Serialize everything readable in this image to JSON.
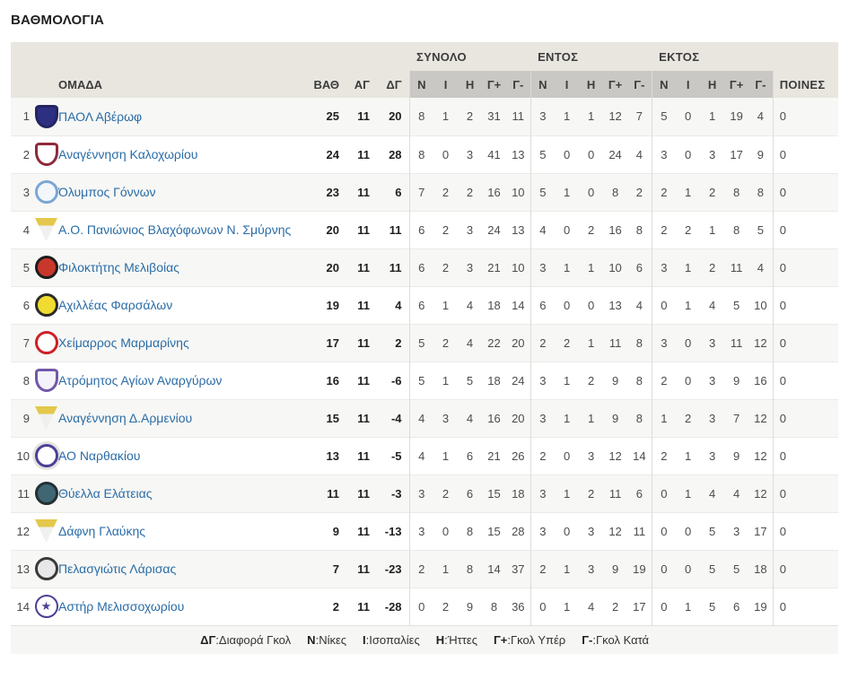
{
  "page": {
    "title": "ΒΑΘΜΟΛΟΓΙΑ"
  },
  "icons": {
    "star_glyph": "★"
  },
  "colors": {
    "header_band": "#e8e6df",
    "stats_band": "#c9c8c4",
    "row_stripe": "#f7f7f5",
    "link_blue": "#2a6ca6",
    "footer_bg": "#f6f6f4"
  },
  "table": {
    "group_headers": [
      {
        "label": "ΣΥΝΟΛΟ"
      },
      {
        "label": "ΕΝΤΟΣ"
      },
      {
        "label": "ΕΚΤΟΣ"
      }
    ],
    "columns": {
      "team": "ΟΜΑΔΑ",
      "points": "ΒΑΘ",
      "games": "ΑΓ",
      "diff": "ΔΓ",
      "stat_cols": [
        "Ν",
        "Ι",
        "Η",
        "Γ+",
        "Γ-"
      ],
      "penalties": "ΠΟΙΝΕΣ"
    },
    "rows": [
      {
        "pos": 1,
        "team": "ΠΑΟΛ Αβέρωφ",
        "points": 25,
        "games": 11,
        "diff": 20,
        "total": [
          8,
          1,
          2,
          31,
          11
        ],
        "home": [
          3,
          1,
          1,
          12,
          7
        ],
        "away": [
          5,
          0,
          1,
          19,
          4
        ],
        "penalties": 0,
        "badge": {
          "shape": "shield",
          "primary": "#2d2f83",
          "secondary": "#23255f"
        }
      },
      {
        "pos": 2,
        "team": "Αναγέννηση Καλοχωρίου",
        "points": 24,
        "games": 11,
        "diff": 28,
        "total": [
          8,
          0,
          3,
          41,
          13
        ],
        "home": [
          5,
          0,
          0,
          24,
          4
        ],
        "away": [
          3,
          0,
          3,
          17,
          9
        ],
        "penalties": 0,
        "badge": {
          "shape": "shield",
          "primary": "#ffffff",
          "secondary": "#8e2a3c"
        }
      },
      {
        "pos": 3,
        "team": "Όλυμπος Γόννων",
        "points": 23,
        "games": 11,
        "diff": 6,
        "total": [
          7,
          2,
          2,
          16,
          10
        ],
        "home": [
          5,
          1,
          0,
          8,
          2
        ],
        "away": [
          2,
          1,
          2,
          8,
          8
        ],
        "penalties": 0,
        "badge": {
          "shape": "circle",
          "primary": "#f3f7fb",
          "secondary": "#7aa7d4"
        }
      },
      {
        "pos": 4,
        "team": "Α.Ο. Πανιώνιος Βλαχόφωνων Ν. Σμύρνης",
        "points": 20,
        "games": 11,
        "diff": 11,
        "total": [
          6,
          2,
          3,
          24,
          13
        ],
        "home": [
          4,
          0,
          2,
          16,
          8
        ],
        "away": [
          2,
          2,
          1,
          8,
          5
        ],
        "penalties": 0,
        "badge": {
          "shape": "pennant",
          "primary": "#f0f0ee",
          "secondary": "#e3c84b"
        }
      },
      {
        "pos": 5,
        "team": "Φιλοκτήτης Μελιβοίας",
        "points": 20,
        "games": 11,
        "diff": 11,
        "total": [
          6,
          2,
          3,
          21,
          10
        ],
        "home": [
          3,
          1,
          1,
          10,
          6
        ],
        "away": [
          3,
          1,
          2,
          11,
          4
        ],
        "penalties": 0,
        "badge": {
          "shape": "circle",
          "primary": "#c8372c",
          "secondary": "#1c1c1c"
        }
      },
      {
        "pos": 6,
        "team": "Αχιλλέας Φαρσάλων",
        "points": 19,
        "games": 11,
        "diff": 4,
        "total": [
          6,
          1,
          4,
          18,
          14
        ],
        "home": [
          6,
          0,
          0,
          13,
          4
        ],
        "away": [
          0,
          1,
          4,
          5,
          10
        ],
        "penalties": 0,
        "badge": {
          "shape": "circle",
          "primary": "#f0dc30",
          "secondary": "#2a2a2a"
        }
      },
      {
        "pos": 7,
        "team": "Χείμαρρος Μαρμαρίνης",
        "points": 17,
        "games": 11,
        "diff": 2,
        "total": [
          5,
          2,
          4,
          22,
          20
        ],
        "home": [
          2,
          2,
          1,
          11,
          8
        ],
        "away": [
          3,
          0,
          3,
          11,
          12
        ],
        "penalties": 0,
        "badge": {
          "shape": "circle",
          "primary": "#ffffff",
          "secondary": "#cd2027"
        }
      },
      {
        "pos": 8,
        "team": "Ατρόμητος Αγίων Αναργύρων",
        "points": 16,
        "games": 11,
        "diff": -6,
        "total": [
          5,
          1,
          5,
          18,
          24
        ],
        "home": [
          3,
          1,
          2,
          9,
          8
        ],
        "away": [
          2,
          0,
          3,
          9,
          16
        ],
        "penalties": 0,
        "badge": {
          "shape": "shield",
          "primary": "#f4f2fa",
          "secondary": "#7258a8"
        }
      },
      {
        "pos": 9,
        "team": "Αναγέννηση Δ.Αρμενίου",
        "points": 15,
        "games": 11,
        "diff": -4,
        "total": [
          4,
          3,
          4,
          16,
          20
        ],
        "home": [
          3,
          1,
          1,
          9,
          8
        ],
        "away": [
          1,
          2,
          3,
          7,
          12
        ],
        "penalties": 0,
        "badge": {
          "shape": "pennant",
          "primary": "#f0f0ee",
          "secondary": "#e3c84b"
        }
      },
      {
        "pos": 10,
        "team": "ΑΟ Ναρθακίου",
        "points": 13,
        "games": 11,
        "diff": -5,
        "total": [
          4,
          1,
          6,
          21,
          26
        ],
        "home": [
          2,
          0,
          3,
          12,
          14
        ],
        "away": [
          2,
          1,
          3,
          9,
          12
        ],
        "penalties": 0,
        "badge": {
          "shape": "circle",
          "primary": "#ffffff",
          "secondary": "#4d3f96",
          "bg": "#e3e3e1"
        }
      },
      {
        "pos": 11,
        "team": "Θύελλα Ελάτειας",
        "points": 11,
        "games": 11,
        "diff": -3,
        "total": [
          3,
          2,
          6,
          15,
          18
        ],
        "home": [
          3,
          1,
          2,
          11,
          6
        ],
        "away": [
          0,
          1,
          4,
          4,
          12
        ],
        "penalties": 0,
        "badge": {
          "shape": "circle",
          "primary": "#3e6673",
          "secondary": "#232f33"
        }
      },
      {
        "pos": 12,
        "team": "Δάφνη Γλαύκης",
        "points": 9,
        "games": 11,
        "diff": -13,
        "total": [
          3,
          0,
          8,
          15,
          28
        ],
        "home": [
          3,
          0,
          3,
          12,
          11
        ],
        "away": [
          0,
          0,
          5,
          3,
          17
        ],
        "penalties": 0,
        "badge": {
          "shape": "pennant",
          "primary": "#f0f0ee",
          "secondary": "#e3c84b"
        }
      },
      {
        "pos": 13,
        "team": "Πελασγιώτις Λάρισας",
        "points": 7,
        "games": 11,
        "diff": -23,
        "total": [
          2,
          1,
          8,
          14,
          37
        ],
        "home": [
          2,
          1,
          3,
          9,
          19
        ],
        "away": [
          0,
          0,
          5,
          5,
          18
        ],
        "penalties": 0,
        "badge": {
          "shape": "circle",
          "primary": "#e8e8e8",
          "secondary": "#3a3a3a"
        }
      },
      {
        "pos": 14,
        "team": "Αστήρ Μελισσοχωρίου",
        "points": 2,
        "games": 11,
        "diff": -28,
        "total": [
          0,
          2,
          9,
          8,
          36
        ],
        "home": [
          0,
          1,
          4,
          2,
          17
        ],
        "away": [
          0,
          1,
          5,
          6,
          19
        ],
        "penalties": 0,
        "badge": {
          "shape": "circle-star",
          "primary": "#ffffff",
          "secondary": "#4d3f96"
        }
      }
    ],
    "legend_separator": ":",
    "legend": [
      {
        "abbr": "ΔΓ",
        "label": "Διαφορά Γκολ"
      },
      {
        "abbr": "Ν",
        "label": "Νίκες"
      },
      {
        "abbr": "Ι",
        "label": "Ισοπαλίες"
      },
      {
        "abbr": "Η",
        "label": "Ήττες"
      },
      {
        "abbr": "Γ+",
        "label": "Γκολ Υπέρ"
      },
      {
        "abbr": "Γ-",
        "label": "Γκολ Κατά"
      }
    ]
  }
}
